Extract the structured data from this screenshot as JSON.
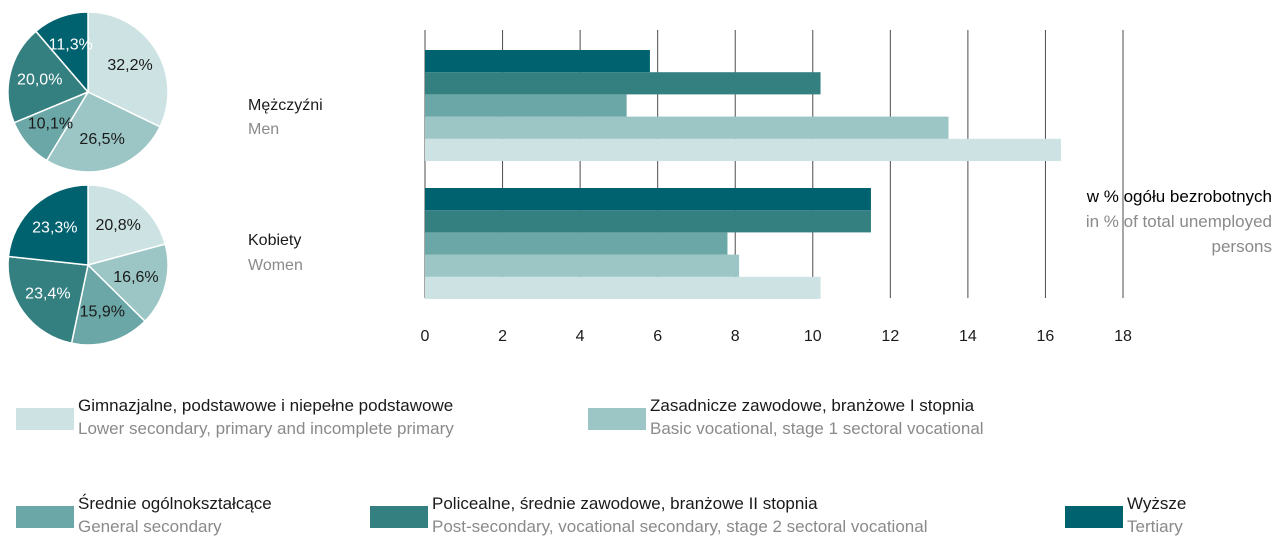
{
  "chart_data": [
    {
      "type": "pie",
      "values": [
        32.2,
        26.5,
        10.1,
        20.0,
        11.3
      ],
      "value_labels": [
        "32,2%",
        "26,5%",
        "10,1%",
        "20,0%",
        "11,3%"
      ]
    },
    {
      "type": "pie",
      "values": [
        20.8,
        16.6,
        15.9,
        23.4,
        23.3
      ],
      "value_labels": [
        "20,8%",
        "16,6%",
        "15,9%",
        "23,4%",
        "23,3%"
      ]
    },
    {
      "type": "barh",
      "categories": [
        "Mężczyźni",
        "Kobiety"
      ],
      "categories_en": [
        "Men",
        "Women"
      ],
      "axis_label": "w % ogółu bezrobotnych",
      "axis_label_en": "in % of total unemployed persons",
      "xlim": [
        0,
        18
      ],
      "xticks": [
        0,
        2,
        4,
        6,
        8,
        10,
        12,
        14,
        16,
        18
      ],
      "grid": true,
      "series": [
        {
          "name": "Gimnazjalne, podstawowe i niepełne podstawowe",
          "name_en": "Lower secondary, primary and incomplete primary",
          "color": "#cde3e3",
          "values": [
            16.4,
            10.2
          ]
        },
        {
          "name": "Zasadnicze zawodowe, branżowe I stopnia",
          "name_en": "Basic vocational, stage 1 sectoral vocational",
          "color": "#9cc5c5",
          "values": [
            13.5,
            8.1
          ]
        },
        {
          "name": "Średnie ogólnokształcące",
          "name_en": "General secondary",
          "color": "#6ba7a7",
          "values": [
            5.2,
            7.8
          ]
        },
        {
          "name": "Policealne, średnie zawodowe, branżowe II stopnia",
          "name_en": "Post-secondary, vocational secondary, stage 2 sectoral vocational",
          "color": "#347f80",
          "values": [
            10.2,
            11.5
          ]
        },
        {
          "name": "Wyższe",
          "name_en": "Tertiary",
          "color": "#00626e",
          "values": [
            5.8,
            11.5
          ]
        }
      ]
    }
  ]
}
